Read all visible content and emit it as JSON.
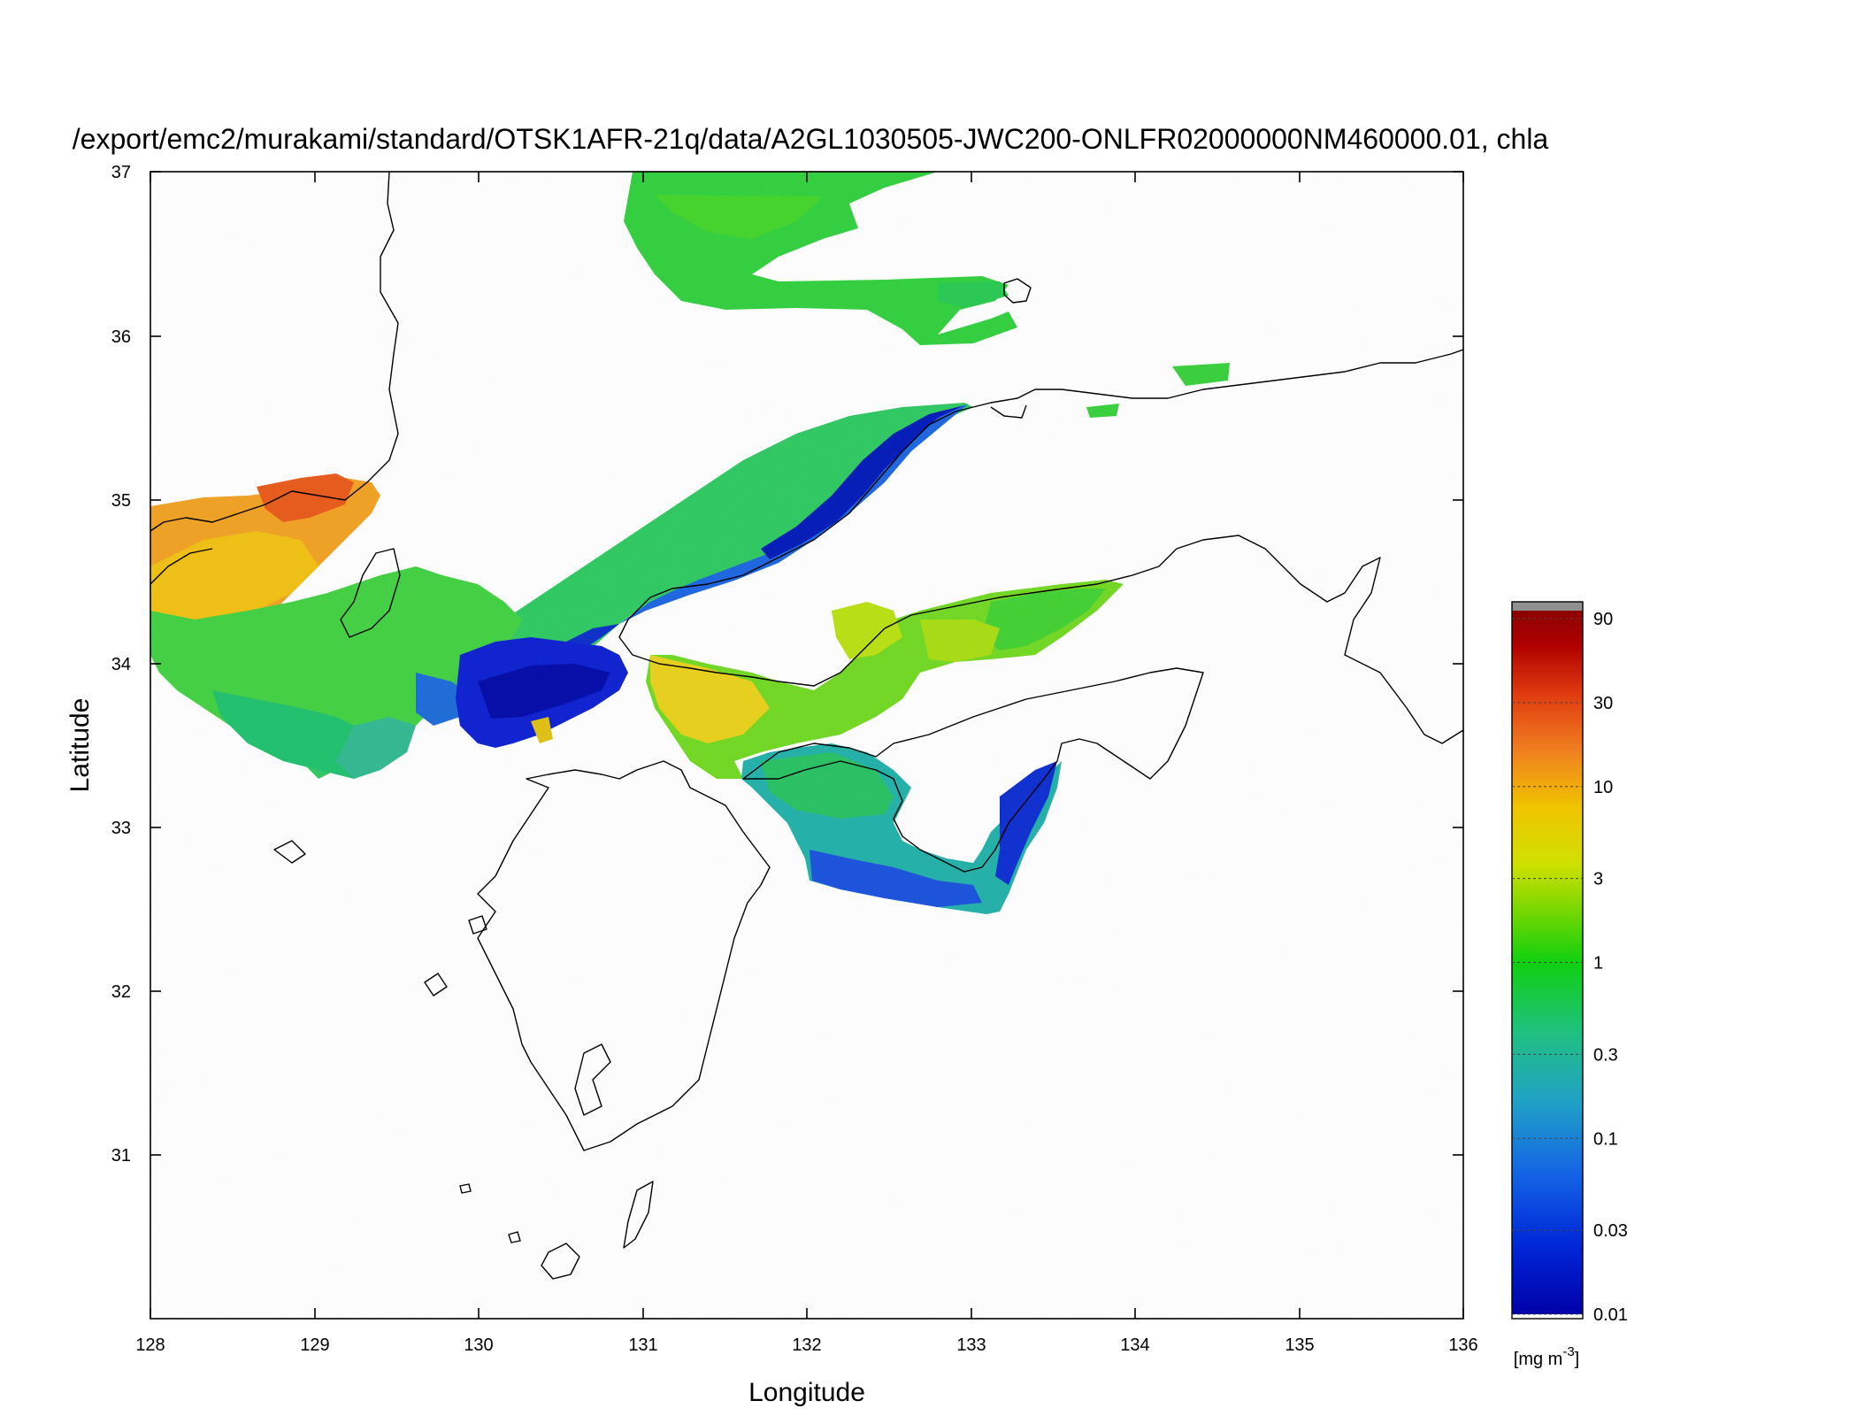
{
  "title": "/export/emc2/murakami/standard/OTSK1AFR-21q/data/A2GL1030505-JWC200-ONLFR02000000NM460000.01, chla",
  "x_axis": {
    "label": "Longitude",
    "range": [
      128,
      136
    ],
    "ticks": [
      "128",
      "129",
      "130",
      "131",
      "132",
      "133",
      "134",
      "135",
      "136"
    ]
  },
  "y_axis": {
    "label": "Latitude",
    "range": [
      30,
      37
    ],
    "ticks": [
      "31",
      "32",
      "33",
      "34",
      "35",
      "36",
      "37"
    ]
  },
  "colorbar": {
    "scale": "log",
    "range": [
      0.01,
      100
    ],
    "tick_values": [
      0.01,
      0.03,
      0.1,
      0.3,
      1,
      3,
      10,
      30,
      90
    ],
    "tick_labels": [
      "0.01",
      "0.03",
      "0.1",
      "0.3",
      "1",
      "3",
      "10",
      "30",
      "90"
    ],
    "unit_text": "[mg m",
    "unit_exponent": "-3",
    "unit_close": "]",
    "colors": [
      "#0000a8",
      "#0030e0",
      "#1e7ae6",
      "#1fb0b0",
      "#18c860",
      "#10d010",
      "#80d800",
      "#d8e000",
      "#f0c000",
      "#f08020",
      "#e04010",
      "#b00000",
      "#8c0000"
    ],
    "cap_color": "#909090"
  }
}
